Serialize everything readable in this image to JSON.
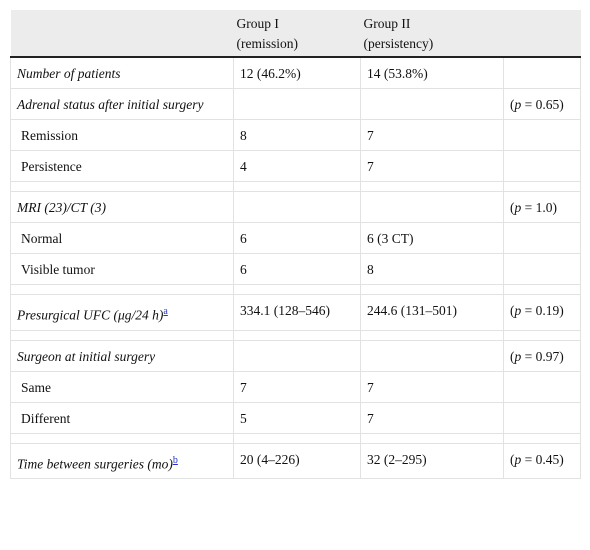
{
  "table": {
    "header": {
      "group1": [
        "Group I",
        "(remission)"
      ],
      "group2": [
        "Group II",
        "(persistency)"
      ]
    },
    "sections": [
      [
        {
          "label": "Number of patients",
          "group1": "12 (46.2%)",
          "group2": "14 (53.8%)"
        },
        {
          "label": "Adrenal status after initial surgery",
          "p": [
            "(",
            "p",
            " = 0.65)"
          ],
          "items": [
            {
              "label": "Remission",
              "group1": "8",
              "group2": "7"
            },
            {
              "label": "Persistence",
              "group1": "4",
              "group2": "7"
            }
          ]
        }
      ],
      [
        {
          "label": "MRI (23)/CT (3)",
          "p": [
            "(",
            "p",
            " = 1.0)"
          ],
          "items": [
            {
              "label": "Normal",
              "group1": "6",
              "group2": "6 (3 CT)"
            },
            {
              "label": "Visible tumor",
              "group1": "6",
              "group2": "8"
            }
          ]
        }
      ],
      [
        {
          "label": "Presurgical UFC (μg/24 h)",
          "footnote": "a",
          "group1": "334.1 (128–546)",
          "group2": "244.6 (131–501)",
          "p": [
            "(",
            "p",
            " = 0.19)"
          ]
        }
      ],
      [
        {
          "label": "Surgeon at initial surgery",
          "p": [
            "(",
            "p",
            " = 0.97)"
          ],
          "items": [
            {
              "label": "Same",
              "group1": "7",
              "group2": "7"
            },
            {
              "label": "Different",
              "group1": "5",
              "group2": "7"
            }
          ]
        }
      ],
      [
        {
          "label": "Time between surgeries (mo)",
          "footnote": "b",
          "group1": "20 (4–226)",
          "group2": "32 (2–295)",
          "p": [
            "(",
            "p",
            " = 0.45)"
          ]
        }
      ]
    ]
  }
}
